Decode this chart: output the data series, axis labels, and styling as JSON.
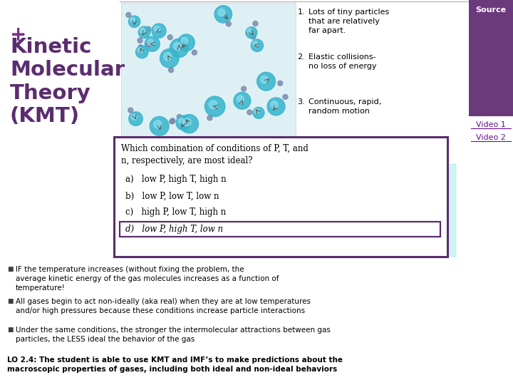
{
  "bg_color": "#ffffff",
  "plus_color": "#7b2d8b",
  "source_text": "Source",
  "source_bg": "#6b3a7d",
  "video1_text": "Video 1",
  "video2_text": "Video 2",
  "video_link_color": "#6a0f8e",
  "kmt_title": "Kinetic\nMolecular\nTheory\n(KMT)",
  "kmt_color": "#5b2c6f",
  "numbered_items": [
    "Lots of tiny particles\nthat are relatively\nfar apart.",
    "Elastic collisions-\nno loss of energy",
    "Continuous, rapid,\nrandom motion"
  ],
  "popup_border_color": "#5b2c6f",
  "popup_title": "Which combination of conditions of P, T, and\nn, respectively, are most ideal?",
  "popup_options": [
    "a)   low P, high T, high n",
    "b)   low P, low T, low n",
    "c)   high P, low T, high n",
    "d)   low P, high T, low n"
  ],
  "bullet1_text": "IF the temperature increases (without fixing the problem, the\naverage kinetic energy of the gas molecules increases as a function of\ntemperature!",
  "bullet2_text": "All gases begin to act non-ideally (aka real) when they are at low temperatures\nand/or high pressures because these conditions increase particle interactions",
  "bullet3_text": "Under the same conditions, the stronger the intermolecular attractions between gas\nparticles, the LESS ideal the behavior of the gas",
  "lo_text": "LO 2.4: The student is able to use KMT and IMF’s to make predictions about the\nmacroscopic properties of gases, including both ideal and non-ideal behaviors",
  "text_color": "#000000"
}
